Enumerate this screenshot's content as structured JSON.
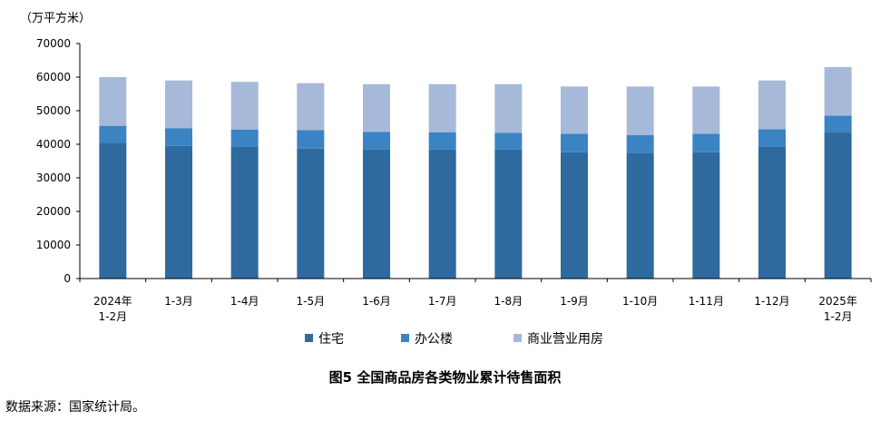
{
  "chart_data": {
    "type": "bar",
    "stacked": true,
    "title": "图5  全国商品房各类物业累计待售面积",
    "unit_label": "（万平方米）",
    "ylim": [
      0,
      70000
    ],
    "yticks": [
      "0",
      "10000",
      "20000",
      "30000",
      "40000",
      "50000",
      "60000",
      "70000"
    ],
    "categories": [
      [
        "2024年",
        "1-2月"
      ],
      [
        "1-3月"
      ],
      [
        "1-4月"
      ],
      [
        "1-5月"
      ],
      [
        "1-6月"
      ],
      [
        "1-7月"
      ],
      [
        "1-8月"
      ],
      [
        "1-9月"
      ],
      [
        "1-10月"
      ],
      [
        "1-11月"
      ],
      [
        "1-12月"
      ],
      [
        "2025年",
        "1-2月"
      ]
    ],
    "series": [
      {
        "name": "住宅",
        "color": "#2e6a9e",
        "values": [
          40500,
          39500,
          39200,
          38700,
          38400,
          38400,
          38400,
          37600,
          37500,
          37600,
          39200,
          43500
        ]
      },
      {
        "name": "办公楼",
        "color": "#3b84c4",
        "values": [
          5000,
          5300,
          5200,
          5500,
          5300,
          5200,
          5000,
          5500,
          5200,
          5500,
          5300,
          5000
        ]
      },
      {
        "name": "商业营业用房",
        "color": "#a7b9d8",
        "values": [
          14500,
          14200,
          14200,
          14000,
          14200,
          14300,
          14500,
          14100,
          14500,
          14100,
          14500,
          14500
        ]
      }
    ],
    "legend_position": "bottom",
    "grid": false
  },
  "source": "数据来源：国家统计局。"
}
